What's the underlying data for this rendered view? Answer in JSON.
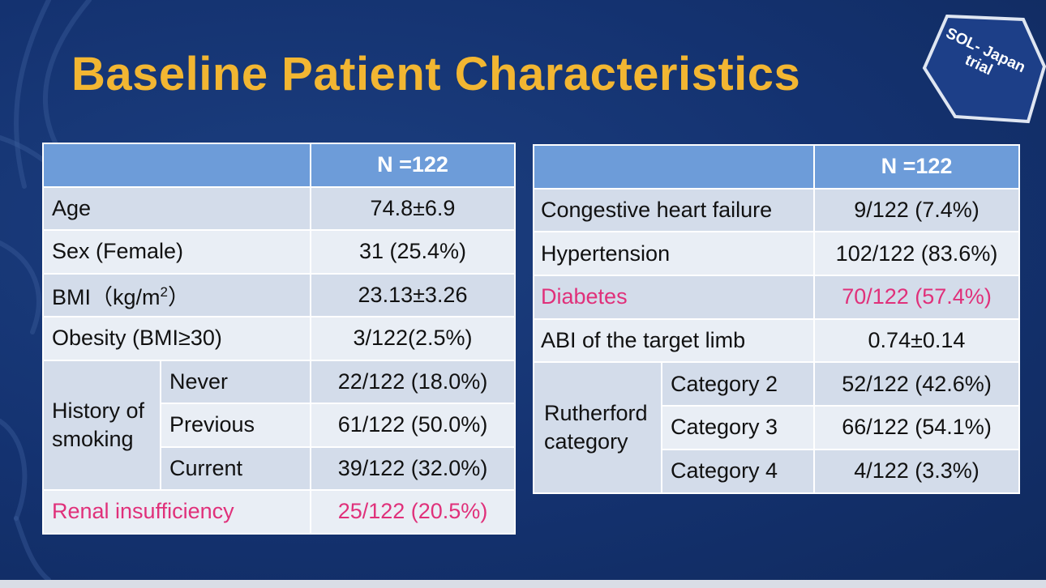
{
  "slide": {
    "title": "Baseline Patient Characteristics",
    "badge": "SOL- Japan trial",
    "colors": {
      "background": "#143270",
      "title": "#f2b632",
      "header": "#6d9cd9",
      "row_dark": "#d3dcea",
      "row_light": "#e9eef5",
      "highlight": "#e0307a"
    }
  },
  "left_table": {
    "header": "N =122",
    "rows": {
      "age": {
        "label": "Age",
        "value": "74.8±6.9"
      },
      "sex": {
        "label": "Sex (Female)",
        "value": "31 (25.4%)"
      },
      "bmi": {
        "label_prefix": "BMI（kg/m",
        "label_sup": "2",
        "label_suffix": "）",
        "value": "23.13±3.26"
      },
      "obesity": {
        "label": "Obesity (BMI≥30)",
        "value": "3/122(2.5%)"
      },
      "smoking": {
        "label": "History of smoking",
        "never": {
          "label": "Never",
          "value": "22/122 (18.0%)"
        },
        "previous": {
          "label": "Previous",
          "value": "61/122 (50.0%)"
        },
        "current": {
          "label": "Current",
          "value": "39/122 (32.0%)"
        }
      },
      "renal": {
        "label": "Renal insufficiency",
        "value": "25/122 (20.5%)"
      }
    }
  },
  "right_table": {
    "header": "N =122",
    "rows": {
      "chf": {
        "label": "Congestive heart failure",
        "value": "9/122 (7.4%)"
      },
      "hypertension": {
        "label": "Hypertension",
        "value": "102/122 (83.6%)"
      },
      "diabetes": {
        "label": "Diabetes",
        "value": "70/122 (57.4%)"
      },
      "abi": {
        "label": "ABI of the target limb",
        "value": "0.74±0.14"
      },
      "rutherford": {
        "label": "Rutherford category",
        "cat2": {
          "label": "Category 2",
          "value": "52/122 (42.6%)"
        },
        "cat3": {
          "label": "Category 3",
          "value": "66/122 (54.1%)"
        },
        "cat4": {
          "label": "Category 4",
          "value": "4/122 (3.3%)"
        }
      }
    }
  }
}
